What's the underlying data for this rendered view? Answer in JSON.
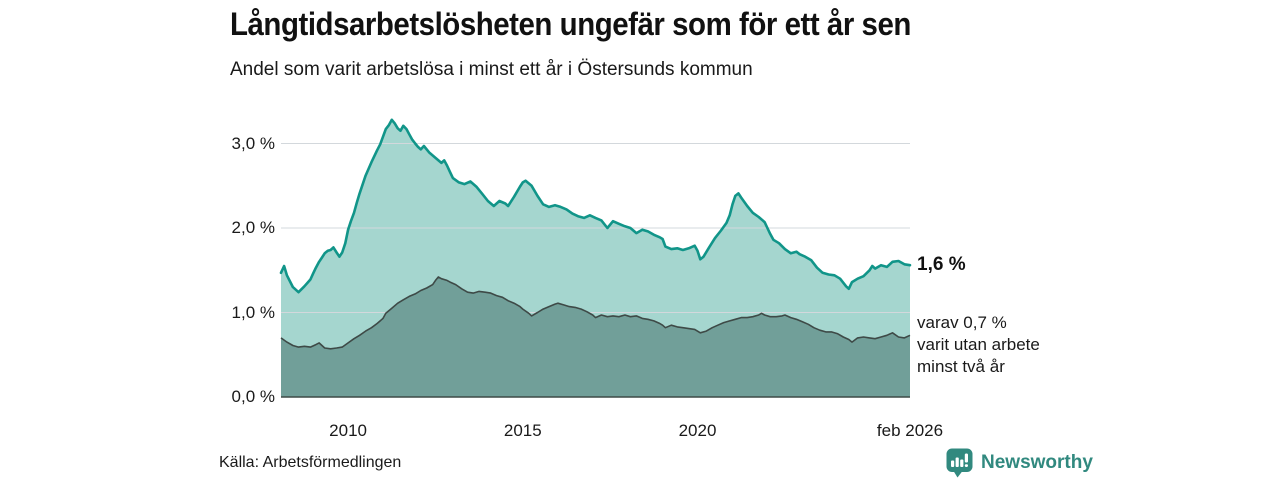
{
  "header": {
    "title": "Långtidsarbetslösheten ungefär som för ett år sen",
    "subtitle": "Andel som varit arbetslösa i minst ett år i Östersunds kommun"
  },
  "annotations": {
    "end_value_label": "1,6 %",
    "detail_line1": "varav 0,7 %",
    "detail_line2": "varit utan arbete",
    "detail_line3": "minst två år"
  },
  "footer": {
    "source": "Källa: Arbetsförmedlingen",
    "brand": "Newsworthy"
  },
  "chart_data": {
    "type": "area",
    "title": "Långtidsarbetslösheten ungefär som för ett år sen",
    "subtitle": "Andel som varit arbetslösa i minst ett år i Östersunds kommun",
    "x_domain": [
      2008.08,
      2026.08
    ],
    "ylim": [
      0,
      3.5
    ],
    "grid": "horizontal",
    "legend": "none",
    "colors": {
      "gridline": "#d3d8dc",
      "baseline": "#3e4a47",
      "text": "#1a1a1a",
      "accent_teal": "#119589",
      "brand_teal": "#31897f"
    },
    "y_ticks": [
      {
        "value": 3,
        "label": "3,0 %"
      },
      {
        "value": 2,
        "label": "2,0 %"
      },
      {
        "value": 1,
        "label": "1,0 %"
      },
      {
        "value": 0,
        "label": "0,0 %"
      }
    ],
    "x_ticks": [
      {
        "value": 2010,
        "label": "2010"
      },
      {
        "value": 2015,
        "label": "2015"
      },
      {
        "value": 2020,
        "label": "2020"
      },
      {
        "value": 2026.08,
        "label": "feb 2026"
      }
    ],
    "series": [
      {
        "name": "Andel arbetslösa minst ett år",
        "end_value": "1,6 %",
        "color": "#119589",
        "fill": "#a5d6cf",
        "points": [
          [
            2008.08,
            1.47
          ],
          [
            2008.17,
            1.55
          ],
          [
            2008.25,
            1.44
          ],
          [
            2008.42,
            1.3
          ],
          [
            2008.58,
            1.24
          ],
          [
            2008.75,
            1.31
          ],
          [
            2008.92,
            1.39
          ],
          [
            2009.0,
            1.46
          ],
          [
            2009.08,
            1.53
          ],
          [
            2009.17,
            1.6
          ],
          [
            2009.25,
            1.65
          ],
          [
            2009.33,
            1.7
          ],
          [
            2009.42,
            1.73
          ],
          [
            2009.5,
            1.74
          ],
          [
            2009.58,
            1.77
          ],
          [
            2009.67,
            1.71
          ],
          [
            2009.75,
            1.66
          ],
          [
            2009.83,
            1.71
          ],
          [
            2009.92,
            1.82
          ],
          [
            2010.0,
            1.98
          ],
          [
            2010.08,
            2.08
          ],
          [
            2010.17,
            2.18
          ],
          [
            2010.25,
            2.3
          ],
          [
            2010.33,
            2.41
          ],
          [
            2010.5,
            2.62
          ],
          [
            2010.67,
            2.78
          ],
          [
            2010.83,
            2.92
          ],
          [
            2010.92,
            2.99
          ],
          [
            2011.0,
            3.08
          ],
          [
            2011.08,
            3.17
          ],
          [
            2011.17,
            3.22
          ],
          [
            2011.25,
            3.28
          ],
          [
            2011.33,
            3.24
          ],
          [
            2011.42,
            3.18
          ],
          [
            2011.5,
            3.15
          ],
          [
            2011.58,
            3.21
          ],
          [
            2011.67,
            3.17
          ],
          [
            2011.75,
            3.11
          ],
          [
            2011.83,
            3.05
          ],
          [
            2011.92,
            3.0
          ],
          [
            2012.0,
            2.96
          ],
          [
            2012.08,
            2.93
          ],
          [
            2012.17,
            2.97
          ],
          [
            2012.33,
            2.89
          ],
          [
            2012.5,
            2.83
          ],
          [
            2012.67,
            2.77
          ],
          [
            2012.75,
            2.8
          ],
          [
            2012.83,
            2.74
          ],
          [
            2012.92,
            2.66
          ],
          [
            2013.0,
            2.59
          ],
          [
            2013.17,
            2.54
          ],
          [
            2013.33,
            2.52
          ],
          [
            2013.5,
            2.55
          ],
          [
            2013.67,
            2.49
          ],
          [
            2013.83,
            2.41
          ],
          [
            2014.0,
            2.32
          ],
          [
            2014.17,
            2.26
          ],
          [
            2014.33,
            2.32
          ],
          [
            2014.5,
            2.29
          ],
          [
            2014.58,
            2.26
          ],
          [
            2014.75,
            2.37
          ],
          [
            2014.92,
            2.49
          ],
          [
            2015.0,
            2.54
          ],
          [
            2015.08,
            2.56
          ],
          [
            2015.25,
            2.5
          ],
          [
            2015.42,
            2.38
          ],
          [
            2015.58,
            2.28
          ],
          [
            2015.75,
            2.25
          ],
          [
            2015.92,
            2.27
          ],
          [
            2016.08,
            2.25
          ],
          [
            2016.25,
            2.22
          ],
          [
            2016.42,
            2.17
          ],
          [
            2016.58,
            2.14
          ],
          [
            2016.75,
            2.12
          ],
          [
            2016.92,
            2.15
          ],
          [
            2017.08,
            2.12
          ],
          [
            2017.25,
            2.09
          ],
          [
            2017.42,
            2.0
          ],
          [
            2017.58,
            2.08
          ],
          [
            2017.75,
            2.05
          ],
          [
            2017.92,
            2.02
          ],
          [
            2018.08,
            2.0
          ],
          [
            2018.25,
            1.94
          ],
          [
            2018.42,
            1.98
          ],
          [
            2018.58,
            1.96
          ],
          [
            2018.75,
            1.92
          ],
          [
            2018.92,
            1.89
          ],
          [
            2019.0,
            1.87
          ],
          [
            2019.08,
            1.78
          ],
          [
            2019.25,
            1.75
          ],
          [
            2019.42,
            1.76
          ],
          [
            2019.58,
            1.74
          ],
          [
            2019.75,
            1.76
          ],
          [
            2019.92,
            1.79
          ],
          [
            2020.0,
            1.73
          ],
          [
            2020.08,
            1.63
          ],
          [
            2020.17,
            1.66
          ],
          [
            2020.33,
            1.77
          ],
          [
            2020.5,
            1.88
          ],
          [
            2020.67,
            1.97
          ],
          [
            2020.83,
            2.06
          ],
          [
            2020.92,
            2.15
          ],
          [
            2021.0,
            2.28
          ],
          [
            2021.08,
            2.38
          ],
          [
            2021.17,
            2.41
          ],
          [
            2021.25,
            2.36
          ],
          [
            2021.42,
            2.26
          ],
          [
            2021.58,
            2.18
          ],
          [
            2021.75,
            2.13
          ],
          [
            2021.92,
            2.07
          ],
          [
            2022.0,
            2.0
          ],
          [
            2022.08,
            1.93
          ],
          [
            2022.17,
            1.86
          ],
          [
            2022.33,
            1.82
          ],
          [
            2022.5,
            1.75
          ],
          [
            2022.67,
            1.7
          ],
          [
            2022.83,
            1.72
          ],
          [
            2022.92,
            1.69
          ],
          [
            2023.08,
            1.66
          ],
          [
            2023.25,
            1.62
          ],
          [
            2023.42,
            1.53
          ],
          [
            2023.58,
            1.47
          ],
          [
            2023.75,
            1.45
          ],
          [
            2023.92,
            1.44
          ],
          [
            2024.08,
            1.4
          ],
          [
            2024.25,
            1.31
          ],
          [
            2024.33,
            1.28
          ],
          [
            2024.42,
            1.36
          ],
          [
            2024.58,
            1.4
          ],
          [
            2024.75,
            1.43
          ],
          [
            2024.92,
            1.5
          ],
          [
            2025.0,
            1.55
          ],
          [
            2025.08,
            1.52
          ],
          [
            2025.25,
            1.56
          ],
          [
            2025.42,
            1.54
          ],
          [
            2025.58,
            1.6
          ],
          [
            2025.75,
            1.61
          ],
          [
            2025.92,
            1.57
          ],
          [
            2026.08,
            1.56
          ]
        ]
      },
      {
        "name": "varav utan arbete minst två år",
        "end_value": "0,7 %",
        "color": "#3e4a47",
        "fill": "#719f99",
        "points": [
          [
            2008.08,
            0.7
          ],
          [
            2008.25,
            0.65
          ],
          [
            2008.42,
            0.61
          ],
          [
            2008.58,
            0.59
          ],
          [
            2008.75,
            0.6
          ],
          [
            2008.92,
            0.59
          ],
          [
            2009.08,
            0.62
          ],
          [
            2009.17,
            0.64
          ],
          [
            2009.33,
            0.58
          ],
          [
            2009.5,
            0.57
          ],
          [
            2009.67,
            0.58
          ],
          [
            2009.83,
            0.59
          ],
          [
            2010.0,
            0.64
          ],
          [
            2010.17,
            0.69
          ],
          [
            2010.33,
            0.73
          ],
          [
            2010.5,
            0.78
          ],
          [
            2010.67,
            0.82
          ],
          [
            2010.83,
            0.87
          ],
          [
            2011.0,
            0.93
          ],
          [
            2011.08,
            0.99
          ],
          [
            2011.25,
            1.05
          ],
          [
            2011.42,
            1.11
          ],
          [
            2011.58,
            1.15
          ],
          [
            2011.75,
            1.19
          ],
          [
            2011.92,
            1.22
          ],
          [
            2012.08,
            1.26
          ],
          [
            2012.25,
            1.29
          ],
          [
            2012.42,
            1.33
          ],
          [
            2012.5,
            1.38
          ],
          [
            2012.58,
            1.42
          ],
          [
            2012.67,
            1.4
          ],
          [
            2012.83,
            1.38
          ],
          [
            2012.92,
            1.36
          ],
          [
            2013.08,
            1.33
          ],
          [
            2013.25,
            1.28
          ],
          [
            2013.42,
            1.24
          ],
          [
            2013.58,
            1.23
          ],
          [
            2013.75,
            1.25
          ],
          [
            2013.92,
            1.24
          ],
          [
            2014.08,
            1.23
          ],
          [
            2014.25,
            1.2
          ],
          [
            2014.42,
            1.18
          ],
          [
            2014.58,
            1.14
          ],
          [
            2014.75,
            1.11
          ],
          [
            2014.92,
            1.07
          ],
          [
            2015.0,
            1.04
          ],
          [
            2015.17,
            0.99
          ],
          [
            2015.25,
            0.96
          ],
          [
            2015.42,
            1.0
          ],
          [
            2015.58,
            1.04
          ],
          [
            2015.75,
            1.07
          ],
          [
            2015.92,
            1.1
          ],
          [
            2016.0,
            1.11
          ],
          [
            2016.17,
            1.09
          ],
          [
            2016.33,
            1.07
          ],
          [
            2016.5,
            1.06
          ],
          [
            2016.67,
            1.04
          ],
          [
            2016.83,
            1.01
          ],
          [
            2017.0,
            0.97
          ],
          [
            2017.08,
            0.94
          ],
          [
            2017.25,
            0.97
          ],
          [
            2017.42,
            0.95
          ],
          [
            2017.58,
            0.96
          ],
          [
            2017.75,
            0.95
          ],
          [
            2017.92,
            0.97
          ],
          [
            2018.08,
            0.95
          ],
          [
            2018.25,
            0.96
          ],
          [
            2018.42,
            0.93
          ],
          [
            2018.58,
            0.92
          ],
          [
            2018.75,
            0.9
          ],
          [
            2018.92,
            0.87
          ],
          [
            2019.0,
            0.85
          ],
          [
            2019.08,
            0.82
          ],
          [
            2019.25,
            0.85
          ],
          [
            2019.42,
            0.83
          ],
          [
            2019.58,
            0.82
          ],
          [
            2019.75,
            0.81
          ],
          [
            2019.92,
            0.8
          ],
          [
            2020.08,
            0.76
          ],
          [
            2020.25,
            0.78
          ],
          [
            2020.42,
            0.82
          ],
          [
            2020.58,
            0.85
          ],
          [
            2020.75,
            0.88
          ],
          [
            2020.92,
            0.9
          ],
          [
            2021.08,
            0.92
          ],
          [
            2021.25,
            0.94
          ],
          [
            2021.42,
            0.94
          ],
          [
            2021.58,
            0.95
          ],
          [
            2021.75,
            0.97
          ],
          [
            2021.83,
            0.99
          ],
          [
            2021.92,
            0.97
          ],
          [
            2022.08,
            0.95
          ],
          [
            2022.25,
            0.95
          ],
          [
            2022.42,
            0.96
          ],
          [
            2022.5,
            0.97
          ],
          [
            2022.67,
            0.94
          ],
          [
            2022.83,
            0.92
          ],
          [
            2023.0,
            0.89
          ],
          [
            2023.17,
            0.86
          ],
          [
            2023.33,
            0.82
          ],
          [
            2023.5,
            0.79
          ],
          [
            2023.67,
            0.77
          ],
          [
            2023.83,
            0.77
          ],
          [
            2024.0,
            0.75
          ],
          [
            2024.17,
            0.71
          ],
          [
            2024.33,
            0.68
          ],
          [
            2024.42,
            0.65
          ],
          [
            2024.58,
            0.7
          ],
          [
            2024.75,
            0.71
          ],
          [
            2024.92,
            0.7
          ],
          [
            2025.08,
            0.69
          ],
          [
            2025.25,
            0.71
          ],
          [
            2025.42,
            0.73
          ],
          [
            2025.58,
            0.76
          ],
          [
            2025.75,
            0.71
          ],
          [
            2025.92,
            0.7
          ],
          [
            2026.08,
            0.73
          ]
        ]
      }
    ]
  }
}
